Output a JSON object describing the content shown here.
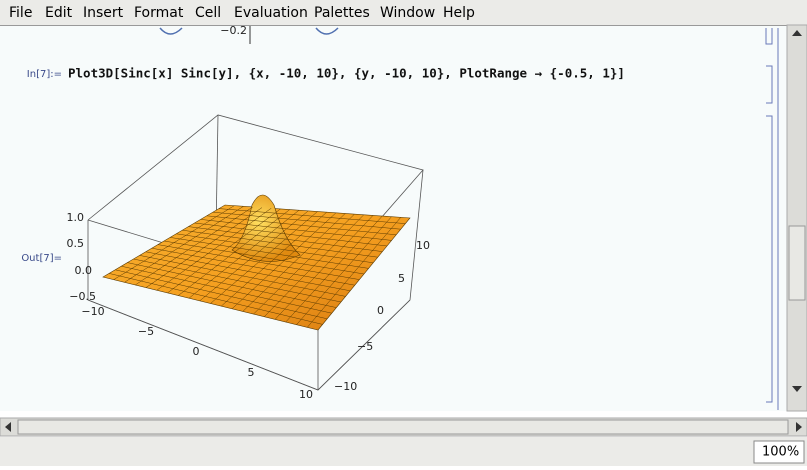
{
  "menu": [
    "File",
    "Edit",
    "Insert",
    "Format",
    "Cell",
    "Evaluation",
    "Palettes",
    "Window",
    "Help"
  ],
  "previous_output": {
    "tick": "−0.2"
  },
  "input": {
    "label": "In[7]:=",
    "code": "Plot3D[Sinc[x] Sinc[y], {x, -10, 10}, {y, -10, 10}, PlotRange → {-0.5, 1}]"
  },
  "output": {
    "label": "Out[7]=",
    "z_ticks": [
      "1.0",
      "0.5",
      "0.0",
      "−0.5"
    ],
    "x_ticks": [
      "−10",
      "−5",
      "0",
      "5",
      "10"
    ],
    "y_ticks": [
      "10",
      "5",
      "0",
      "−5",
      "−10"
    ]
  },
  "status": {
    "zoom": "100%"
  }
}
